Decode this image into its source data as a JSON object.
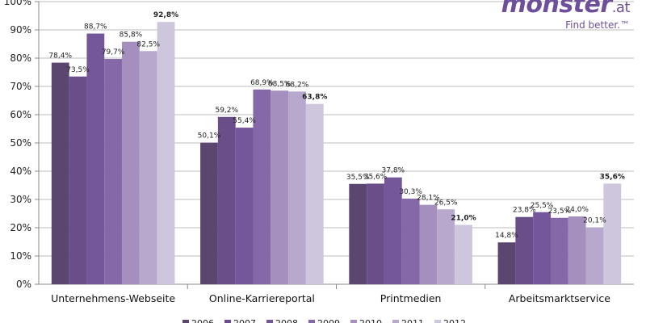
{
  "logo": {
    "word": "monster",
    "tld": ".at",
    "tagline": "Find better.™"
  },
  "chart_data": {
    "type": "bar",
    "categories": [
      "Unternehmens-Webseite",
      "Online-Karriereportal",
      "Printmedien",
      "Arbeitsmarktservice"
    ],
    "ylim": [
      0,
      100
    ],
    "yticks": [
      "0%",
      "10%",
      "20%",
      "30%",
      "40%",
      "50%",
      "60%",
      "70%",
      "80%",
      "90%",
      "100%"
    ],
    "grid": true,
    "legend_position": "bottom",
    "series": [
      {
        "name": "2006",
        "color": "#5b4670",
        "values": [
          78.4,
          50.1,
          35.5,
          14.8
        ],
        "labels": [
          "78,4%",
          "50,1%",
          "35,5%",
          "14,8%"
        ],
        "bold": false
      },
      {
        "name": "2007",
        "color": "#6a4e8a",
        "values": [
          73.5,
          59.2,
          35.6,
          23.8
        ],
        "labels": [
          "73,5%",
          "59,2%",
          "35,6%",
          "23,8%"
        ],
        "bold": false
      },
      {
        "name": "2008",
        "color": "#74569a",
        "values": [
          88.7,
          55.4,
          37.8,
          25.5
        ],
        "labels": [
          "88,7%",
          "55,4%",
          "37,8%",
          "25,5%"
        ],
        "bold": false
      },
      {
        "name": "2009",
        "color": "#8468a8",
        "values": [
          79.7,
          68.9,
          30.3,
          23.5
        ],
        "labels": [
          "79,7%",
          "68,9%",
          "30,3%",
          "23,5%"
        ],
        "bold": false
      },
      {
        "name": "2010",
        "color": "#a48fbe",
        "values": [
          85.8,
          68.5,
          28.1,
          24.0
        ],
        "labels": [
          "85,8%",
          "68,5%",
          "28,1%",
          "24,0%"
        ],
        "bold": false
      },
      {
        "name": "2011",
        "color": "#b8a8ce",
        "values": [
          82.5,
          68.2,
          26.5,
          20.1
        ],
        "labels": [
          "82,5%",
          "68,2%",
          "26,5%",
          "20,1%"
        ],
        "bold": false
      },
      {
        "name": "2012",
        "color": "#cec6dc",
        "values": [
          92.8,
          63.8,
          21.0,
          35.6
        ],
        "labels": [
          "92,8%",
          "63,8%",
          "21,0%",
          "35,6%"
        ],
        "bold": true
      }
    ]
  }
}
